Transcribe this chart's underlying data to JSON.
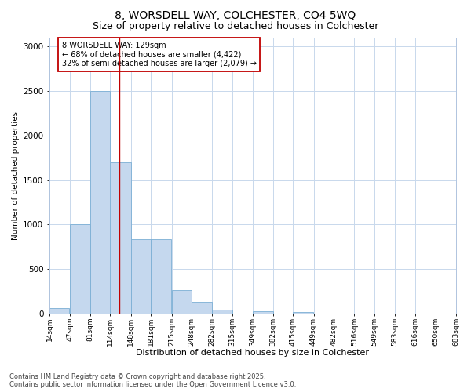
{
  "title1": "8, WORSDELL WAY, COLCHESTER, CO4 5WQ",
  "title2": "Size of property relative to detached houses in Colchester",
  "xlabel": "Distribution of detached houses by size in Colchester",
  "ylabel": "Number of detached properties",
  "footer1": "Contains HM Land Registry data © Crown copyright and database right 2025.",
  "footer2": "Contains public sector information licensed under the Open Government Licence v3.0.",
  "annotation_line1": "8 WORSDELL WAY: 129sqm",
  "annotation_line2": "← 68% of detached houses are smaller (4,422)",
  "annotation_line3": "32% of semi-detached houses are larger (2,079) →",
  "bar_left_edges": [
    14,
    47,
    81,
    114,
    148,
    181,
    215,
    248,
    282,
    315,
    349,
    382,
    415,
    449,
    482,
    516,
    549,
    583,
    616,
    650
  ],
  "bar_widths": [
    33,
    34,
    33,
    34,
    33,
    34,
    33,
    34,
    33,
    34,
    33,
    33,
    34,
    33,
    34,
    33,
    34,
    33,
    34,
    33
  ],
  "bar_heights": [
    60,
    1000,
    2500,
    1700,
    840,
    840,
    270,
    130,
    50,
    0,
    30,
    0,
    20,
    0,
    0,
    0,
    0,
    0,
    0,
    0
  ],
  "bar_color": "#c5d8ee",
  "bar_edge_color": "#7bafd4",
  "vline_x": 129,
  "vline_color": "#c00000",
  "ylim": [
    0,
    3100
  ],
  "yticks": [
    0,
    500,
    1000,
    1500,
    2000,
    2500,
    3000
  ],
  "tick_labels": [
    "14sqm",
    "47sqm",
    "81sqm",
    "114sqm",
    "148sqm",
    "181sqm",
    "215sqm",
    "248sqm",
    "282sqm",
    "315sqm",
    "349sqm",
    "382sqm",
    "415sqm",
    "449sqm",
    "482sqm",
    "516sqm",
    "549sqm",
    "583sqm",
    "616sqm",
    "650sqm",
    "683sqm"
  ],
  "background_color": "#ffffff",
  "grid_color": "#c8d8ec",
  "annotation_box_color": "#c00000",
  "title1_fontsize": 10,
  "title2_fontsize": 9,
  "ylabel_fontsize": 7.5,
  "xlabel_fontsize": 8,
  "ytick_fontsize": 7.5,
  "xtick_fontsize": 6.5,
  "annotation_fontsize": 7,
  "footer_fontsize": 6
}
